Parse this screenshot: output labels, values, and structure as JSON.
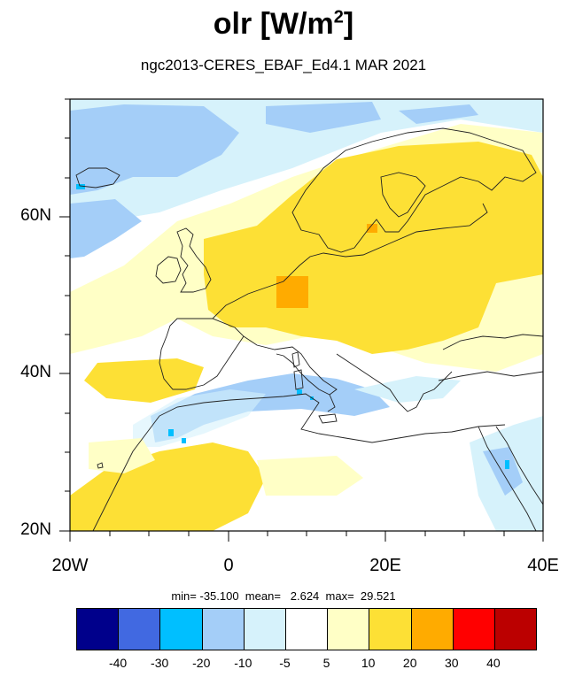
{
  "title": {
    "main": "olr [W/m",
    "sup": "2",
    "close": "]"
  },
  "subtitle": "ngc2013-CERES_EBAF_Ed4.1  MAR 2021",
  "map": {
    "lon_range": [
      -20,
      40
    ],
    "lat_range": [
      20,
      75
    ],
    "lat_ticks": [
      {
        "lat": 60,
        "label": "60N"
      },
      {
        "lat": 40,
        "label": "40N"
      },
      {
        "lat": 20,
        "label": "20N"
      }
    ],
    "lon_ticks": [
      {
        "lon": -20,
        "label": "20W"
      },
      {
        "lon": 0,
        "label": "0"
      },
      {
        "lon": 20,
        "label": "20E"
      },
      {
        "lon": 40,
        "label": "40E"
      }
    ]
  },
  "stats": "min= -35.100  mean=   2.624  max=  29.521",
  "colorbar": {
    "colors": [
      "#00008b",
      "#4169e1",
      "#00bfff",
      "#a4cef8",
      "#d6f2fb",
      "#ffffff",
      "#ffffc6",
      "#fde035",
      "#ffab00",
      "#ff0000",
      "#bb0000"
    ],
    "labels": [
      "-40",
      "-30",
      "-20",
      "-10",
      "-5",
      "5",
      "10",
      "20",
      "30",
      "40"
    ]
  }
}
